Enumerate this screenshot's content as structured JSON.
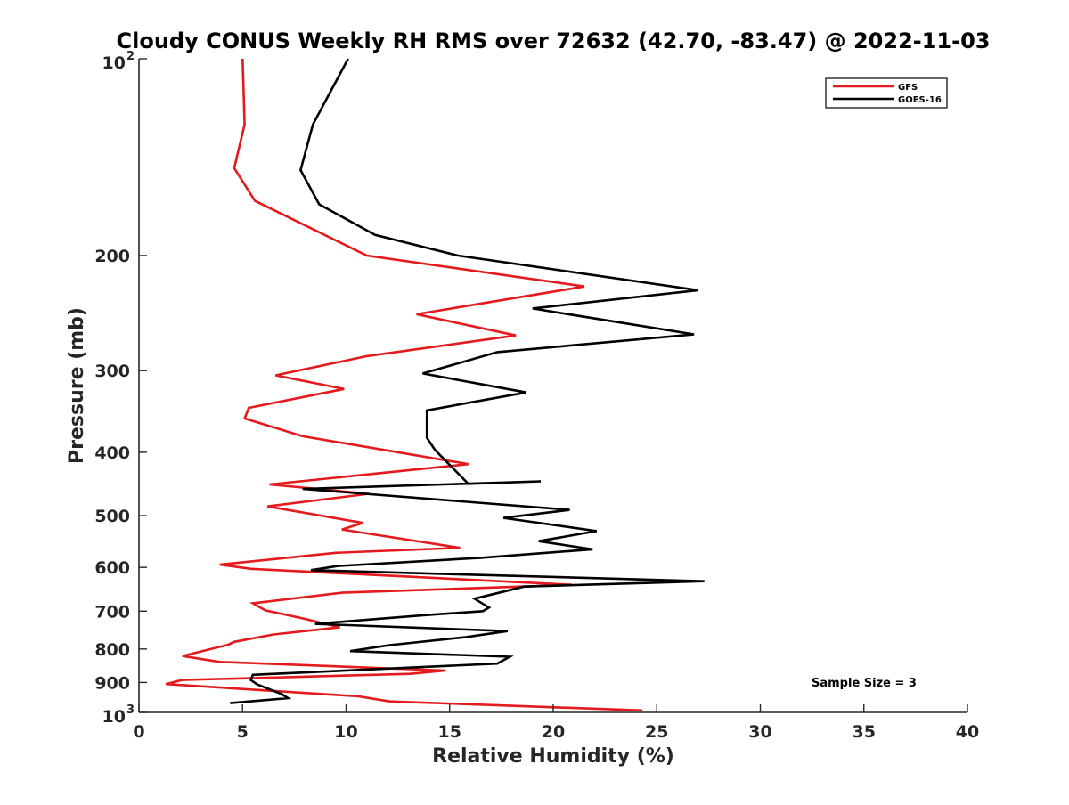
{
  "chart_data": {
    "type": "line",
    "title": "Cloudy CONUS Weekly RH RMS over 72632 (42.70, -83.47) @ 2022-11-03",
    "xlabel": "Relative Humidity (%)",
    "ylabel": "Pressure (mb)",
    "xlim": [
      0,
      40
    ],
    "ylim": [
      100,
      1000
    ],
    "y_scale": "log",
    "y_reversed": true,
    "grid": false,
    "legend_placement": "top-right",
    "x_ticks": [
      0,
      5,
      10,
      15,
      20,
      25,
      30,
      35,
      40
    ],
    "y_ticks": [
      {
        "value": 100,
        "label": "10",
        "sup": "2"
      },
      {
        "value": 200,
        "label": "200",
        "sup": ""
      },
      {
        "value": 300,
        "label": "300",
        "sup": ""
      },
      {
        "value": 400,
        "label": "400",
        "sup": ""
      },
      {
        "value": 500,
        "label": "500",
        "sup": ""
      },
      {
        "value": 600,
        "label": "600",
        "sup": ""
      },
      {
        "value": 700,
        "label": "700",
        "sup": ""
      },
      {
        "value": 800,
        "label": "800",
        "sup": ""
      },
      {
        "value": 900,
        "label": "900",
        "sup": ""
      },
      {
        "value": 1000,
        "label": "10",
        "sup": "3"
      }
    ],
    "series": [
      {
        "name": "GFS",
        "color": "#e41a1c",
        "x": [
          5.0,
          5.1,
          4.6,
          5.6,
          11.0,
          21.5,
          13.4,
          18.2,
          11.0,
          6.6,
          9.9,
          5.3,
          5.1,
          7.9,
          15.9,
          6.3,
          11.1,
          6.2,
          10.8,
          9.8,
          15.5,
          9.5,
          3.9,
          5.4,
          20.9,
          9.8,
          5.5,
          6.1,
          7.9,
          9.7,
          6.5,
          4.6,
          4.3,
          2.1,
          3.9,
          14.8,
          13.1,
          2.1,
          1.3,
          10.6,
          12.1,
          24.3
        ],
        "y": [
          100,
          126,
          147,
          165,
          200,
          223,
          246,
          265,
          285,
          305,
          320,
          342,
          355,
          378,
          417,
          448,
          463,
          484,
          513,
          525,
          560,
          570,
          594,
          603,
          638,
          656,
          681,
          698,
          718,
          741,
          760,
          780,
          788,
          820,
          837,
          863,
          873,
          892,
          905,
          945,
          962,
          993
        ]
      },
      {
        "name": "GOES-16",
        "color": "#000000",
        "x": [
          10.1,
          8.4,
          7.8,
          8.7,
          11.4,
          15.4,
          27.0,
          19.0,
          26.8,
          17.3,
          13.7,
          18.7,
          13.9,
          13.9,
          14.3,
          15.9,
          19.4,
          7.9,
          20.8,
          17.6,
          22.1,
          19.3,
          21.9,
          16.5,
          9.6,
          8.3,
          27.3,
          18.6,
          16.2,
          16.9,
          16.6,
          13.8,
          8.5,
          17.8,
          15.8,
          12.1,
          10.2,
          17.9,
          17.3,
          5.5,
          5.4,
          5.7,
          6.9,
          7.2,
          4.4
        ],
        "y": [
          100,
          126,
          148,
          167,
          186,
          200,
          226,
          241,
          264,
          281,
          303,
          324,
          345,
          380,
          397,
          447,
          443,
          455,
          490,
          504,
          528,
          547,
          563,
          580,
          597,
          606,
          630,
          642,
          670,
          691,
          700,
          710,
          732,
          751,
          767,
          789,
          806,
          822,
          842,
          876,
          892,
          906,
          938,
          951,
          968
        ]
      }
    ],
    "annotation": "Sample Size = 3"
  }
}
